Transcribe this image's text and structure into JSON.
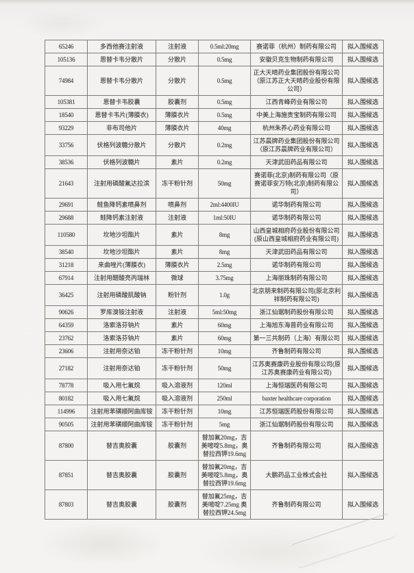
{
  "table": {
    "rows": [
      {
        "code": "65246",
        "name": "多西他赛注射液",
        "form": "注射液",
        "spec": "0.5ml:20mg",
        "company": "赛诺菲（杭州）制药有限公司",
        "status": "拟入围候选"
      },
      {
        "code": "105136",
        "name": "恩替卡韦分散片",
        "form": "分散片",
        "spec": "0.5mg",
        "company": "安徽贝克生物制药有限公司",
        "status": "拟入围候选"
      },
      {
        "code": "74984",
        "name": "恩替卡韦分散片",
        "form": "分散片",
        "spec": "0.5mg",
        "company": "正大天晴药业集团股份有限公司（原江苏正大天晴药业股份有限公司）",
        "status": "拟入围候选"
      },
      {
        "code": "105381",
        "name": "恩替卡韦胶囊",
        "form": "胶囊剂",
        "spec": "0.5mg",
        "company": "江西青峰药业有限公司",
        "status": "拟入围候选"
      },
      {
        "code": "18540",
        "name": "恩替卡韦片(薄膜衣)",
        "form": "薄膜衣片",
        "spec": "0.5mg",
        "company": "中美上海施贵宝制药有限公司",
        "status": "拟入围候选"
      },
      {
        "code": "93229",
        "name": "非布司他片",
        "form": "薄膜衣片",
        "spec": "40mg",
        "company": "杭州朱养心药业有限公司",
        "status": "拟入围候选"
      },
      {
        "code": "33756",
        "name": "伏格列波糖分散片",
        "form": "分散片",
        "spec": "0.2mg",
        "company": "江苏晨牌药业集团股份有限公司（原江苏晨牌药业有限公司）",
        "status": "拟入围候选"
      },
      {
        "code": "38536",
        "name": "伏格列波糖片",
        "form": "素片",
        "spec": "0.2mg",
        "company": "天津武田药品有限公司",
        "status": "拟入围候选"
      },
      {
        "code": "21643",
        "name": "注射用磷酸氟达拉滨",
        "form": "冻干粉针剂",
        "spec": "50mg",
        "company": "赛诺菲(北京)制药有限公司（原赛诺菲安万特(北京)制药有限公司）",
        "status": "拟入围候选"
      },
      {
        "code": "29691",
        "name": "鲑鱼降钙素喷鼻剂",
        "form": "喷鼻剂",
        "spec": "2ml:4400IU",
        "company": "诺华制药有限公司",
        "status": "拟入围候选"
      },
      {
        "code": "29688",
        "name": "鲑降钙素注射液",
        "form": "注射液",
        "spec": "1ml:50IU",
        "company": "诺华制药有限公司",
        "status": "拟入围候选"
      },
      {
        "code": "110580",
        "name": "坎地沙坦酯片",
        "form": "素片",
        "spec": "8mg",
        "company": "山西皇城相府药业股份有限公司(原山西皇城相府药业有限公司)",
        "status": "拟入围候选"
      },
      {
        "code": "38540",
        "name": "坎地沙坦酯片",
        "form": "素片",
        "spec": "8mg",
        "company": "天津武田药品有限公司",
        "status": "拟入围候选"
      },
      {
        "code": "31218",
        "name": "来曲唑片(薄膜衣)",
        "form": "薄膜衣片",
        "spec": "2.5mg",
        "company": "诺华制药有限公司",
        "status": "拟入围候选"
      },
      {
        "code": "67914",
        "name": "注射用醋酸亮丙瑞林",
        "form": "微球",
        "spec": "3.75mg",
        "company": "上海丽珠制药有限公司",
        "status": "拟入围候选"
      },
      {
        "code": "36425",
        "name": "注射用磷酸肌酸钠",
        "form": "粉针剂",
        "spec": "1.0g",
        "company": "北京朋来制药有限公司(原北京利祥制药有限公司)",
        "status": "拟入围候选"
      },
      {
        "code": "90626",
        "name": "罗库溴铵注射液",
        "form": "注射液",
        "spec": "5ml:50mg",
        "company": "浙江仙琚制药股份有限公司",
        "status": "拟入围候选"
      },
      {
        "code": "64359",
        "name": "洛索洛芬钠片",
        "form": "素片",
        "spec": "60mg",
        "company": "上海旭东海普药业有限公司",
        "status": "拟入围候选"
      },
      {
        "code": "23762",
        "name": "洛索洛芬钠片",
        "form": "素片",
        "spec": "60mg",
        "company": "第一三共制药（上海）有限公司",
        "status": "拟入围候选"
      },
      {
        "code": "23606",
        "name": "注射用奈达铂",
        "form": "冻干粉针剂",
        "spec": "10mg",
        "company": "齐鲁制药有限公司",
        "status": "拟入围候选"
      },
      {
        "code": "27182",
        "name": "注射用奈达铂",
        "form": "冻干粉针剂",
        "spec": "50mg",
        "company": "江苏奥赛康药业股份有限公司(原江苏奥赛康药业有限公司)",
        "status": "拟入围候选"
      },
      {
        "code": "78778",
        "name": "吸入用七氟烷",
        "form": "吸入溶液剂",
        "spec": "120ml",
        "company": "上海恒瑞医药有限公司",
        "status": "拟入围候选"
      },
      {
        "code": "80182",
        "name": "吸入用七氟烷",
        "form": "吸入溶液剂",
        "spec": "250ml",
        "company": "baxter healthcare corporation",
        "status": "拟入围候选"
      },
      {
        "code": "114996",
        "name": "注射用苯磺顺阿曲库铵",
        "form": "冻干粉针剂",
        "spec": "10mg",
        "company": "江苏恒瑞医药股份有限公司",
        "status": "拟入围候选"
      },
      {
        "code": "90505",
        "name": "注射用苯磺顺阿曲库铵",
        "form": "冻干粉针剂",
        "spec": "5mg",
        "company": "浙江仙琚制药股份有限公司",
        "status": "拟入围候选"
      },
      {
        "code": "87800",
        "name": "替吉奥胶囊",
        "form": "胶囊剂",
        "spec": "替加氟20mg，吉美嘧啶5.8mg，奥替拉西钾19.6mg",
        "company": "齐鲁制药有限公司",
        "status": "拟入围候选"
      },
      {
        "code": "87851",
        "name": "替吉奥胶囊",
        "form": "胶囊剂",
        "spec": "替加氟20mg，吉美嘧啶5.8mg，奥替拉西钾19.6mg",
        "company": "大鹏药品工业株式会社",
        "status": "拟入围候选"
      },
      {
        "code": "87803",
        "name": "替吉奥胶囊",
        "form": "胶囊剂",
        "spec": "替加氟25mg，吉美嘧啶7.25mg 奥替拉西钾24.5mg",
        "company": "齐鲁制药有限公司",
        "status": "拟入围候选"
      }
    ]
  }
}
